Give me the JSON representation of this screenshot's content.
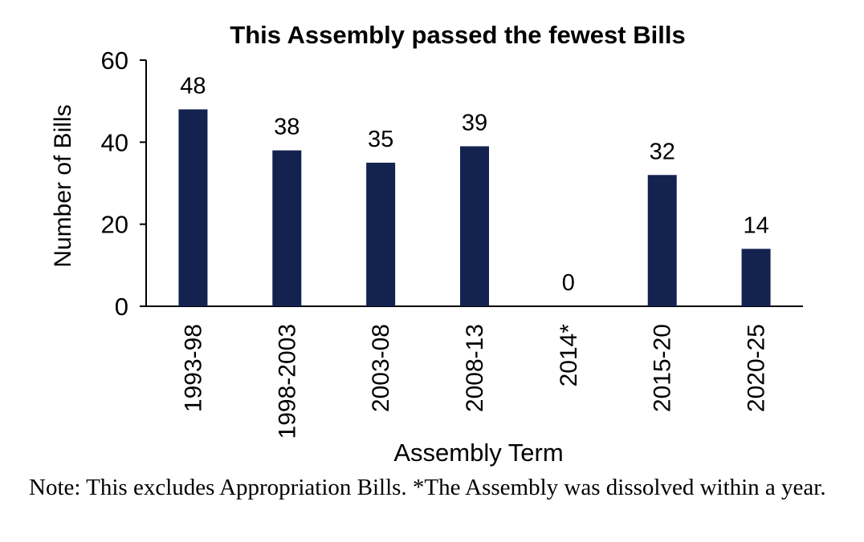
{
  "chart_data": {
    "type": "bar",
    "title": "This Assembly passed the fewest Bills",
    "xlabel": "Assembly Term",
    "ylabel": "Number of Bills",
    "categories": [
      "1993-98",
      "1998-2003",
      "2003-08",
      "2008-13",
      "2014*",
      "2015-20",
      "2020-25"
    ],
    "values": [
      48,
      38,
      35,
      39,
      0,
      32,
      14
    ],
    "data_labels": [
      "48",
      "38",
      "35",
      "39",
      "0",
      "32",
      "14"
    ],
    "ylim": [
      0,
      60
    ],
    "yticks": [
      0,
      20,
      40,
      60
    ],
    "ytick_labels": [
      "0",
      "20",
      "40",
      "60"
    ],
    "grid": false,
    "legend": "none",
    "bar_color": "#13224f"
  },
  "note": "Note: This excludes Appropriation Bills.  *The Assembly was dissolved within a year."
}
